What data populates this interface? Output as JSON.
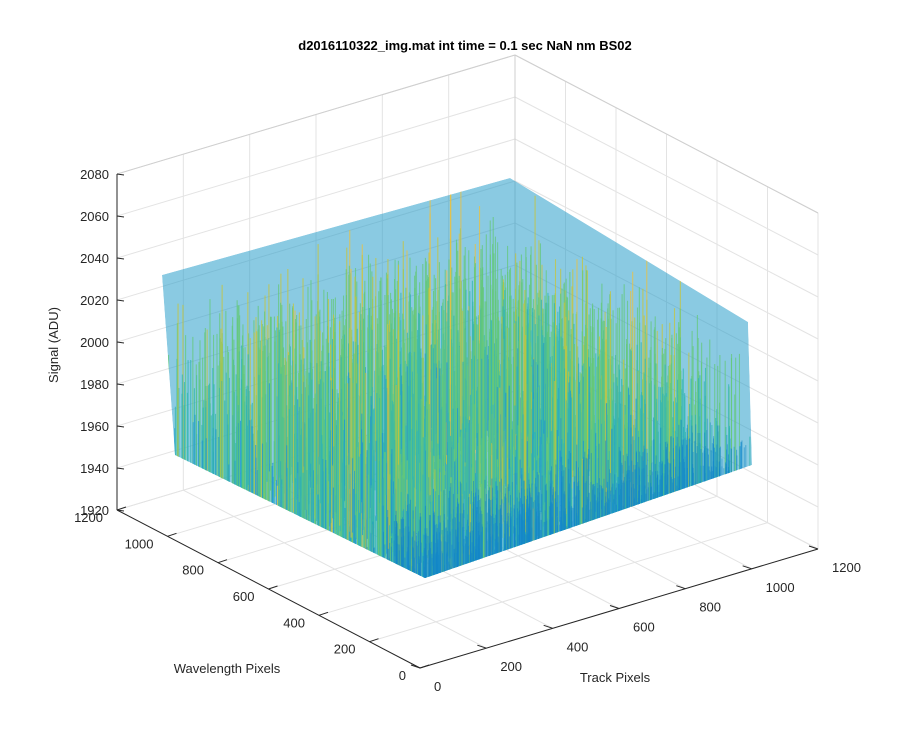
{
  "chart_data": {
    "type": "surface",
    "title": "d2016110322_img.mat int time = 0.1 sec  NaN nm BS02",
    "xlabel": "Track Pixels",
    "ylabel": "Wavelength Pixels",
    "zlabel": "Signal (ADU)",
    "xlim": [
      0,
      1200
    ],
    "ylim": [
      0,
      1200
    ],
    "zlim": [
      1920,
      2080
    ],
    "xticks": [
      "0",
      "200",
      "400",
      "600",
      "800",
      "1000",
      "1200"
    ],
    "yticks": [
      "0",
      "200",
      "400",
      "600",
      "800",
      "1000",
      "1200"
    ],
    "zticks": [
      "1920",
      "1940",
      "1960",
      "1980",
      "2000",
      "2020",
      "2040",
      "2060",
      "2080"
    ],
    "data_extent": {
      "x": [
        0,
        1024
      ],
      "y": [
        0,
        1024
      ]
    },
    "signal_summary": {
      "typical_min": 1935,
      "typical_max": 2030,
      "peak_max": 2078,
      "low_min": 1930
    },
    "grid": true,
    "colormap": [
      "#0072bd",
      "#1e96d2",
      "#33b6b0",
      "#64c87a",
      "#c7c43a",
      "#edc13e"
    ]
  }
}
